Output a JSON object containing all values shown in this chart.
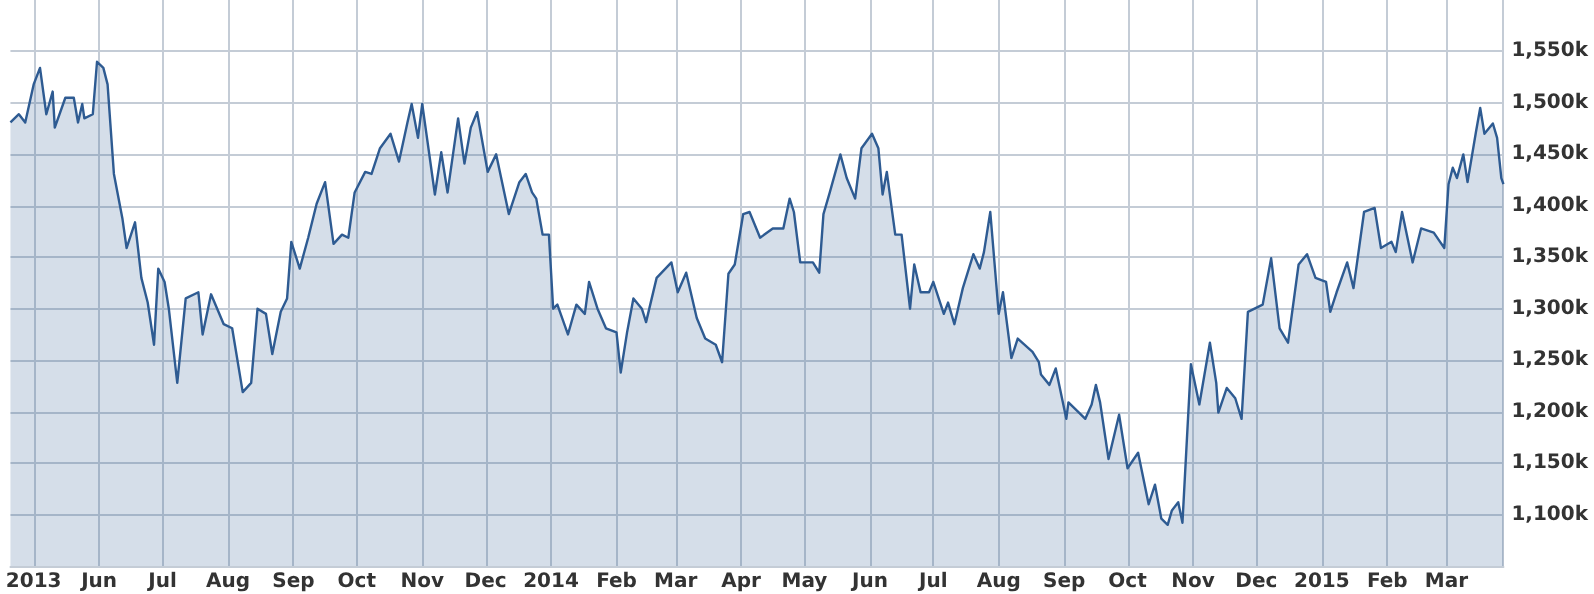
{
  "chart_data": {
    "type": "area",
    "color": "#2e5b92",
    "grid": true,
    "marker": "none",
    "xlim": [
      "2013-04-20",
      "2015-03-28"
    ],
    "xticks": [
      {
        "value": "2013-05-01",
        "label": "2013"
      },
      {
        "value": "2013-06-01",
        "label": "Jun"
      },
      {
        "value": "2013-07-01",
        "label": "Jul"
      },
      {
        "value": "2013-08-01",
        "label": "Aug"
      },
      {
        "value": "2013-09-01",
        "label": "Sep"
      },
      {
        "value": "2013-10-01",
        "label": "Oct"
      },
      {
        "value": "2013-11-01",
        "label": "Nov"
      },
      {
        "value": "2013-12-01",
        "label": "Dec"
      },
      {
        "value": "2014-01-01",
        "label": "2014"
      },
      {
        "value": "2014-02-01",
        "label": "Feb"
      },
      {
        "value": "2014-03-01",
        "label": "Mar"
      },
      {
        "value": "2014-04-01",
        "label": "Apr"
      },
      {
        "value": "2014-05-01",
        "label": "May"
      },
      {
        "value": "2014-06-01",
        "label": "Jun"
      },
      {
        "value": "2014-07-01",
        "label": "Jul"
      },
      {
        "value": "2014-08-01",
        "label": "Aug"
      },
      {
        "value": "2014-09-01",
        "label": "Sep"
      },
      {
        "value": "2014-10-01",
        "label": "Oct"
      },
      {
        "value": "2014-11-01",
        "label": "Nov"
      },
      {
        "value": "2014-12-01",
        "label": "Dec"
      },
      {
        "value": "2015-01-01",
        "label": "2015"
      },
      {
        "value": "2015-02-01",
        "label": "Feb"
      },
      {
        "value": "2015-03-01",
        "label": "Mar"
      }
    ],
    "ylim": [
      1050,
      1600
    ],
    "yticks": [
      {
        "value": 1100,
        "label": "1,100k"
      },
      {
        "value": 1150,
        "label": "1,150k"
      },
      {
        "value": 1200,
        "label": "1,200k"
      },
      {
        "value": 1250,
        "label": "1,250k"
      },
      {
        "value": 1300,
        "label": "1,300k"
      },
      {
        "value": 1350,
        "label": "1,350k"
      },
      {
        "value": 1400,
        "label": "1,400k"
      },
      {
        "value": 1450,
        "label": "1,450k"
      },
      {
        "value": 1500,
        "label": "1,500k"
      },
      {
        "value": 1550,
        "label": "1,550k"
      }
    ],
    "x": [
      "2013-04-20",
      "2013-04-24",
      "2013-04-27",
      "2013-05-01",
      "2013-05-04",
      "2013-05-07",
      "2013-05-10",
      "2013-05-11",
      "2013-05-16",
      "2013-05-20",
      "2013-05-22",
      "2013-05-24",
      "2013-05-25",
      "2013-05-29",
      "2013-05-31",
      "2013-06-03",
      "2013-06-05",
      "2013-06-08",
      "2013-06-12",
      "2013-06-14",
      "2013-06-18",
      "2013-06-21",
      "2013-06-24",
      "2013-06-27",
      "2013-06-29",
      "2013-07-02",
      "2013-07-04",
      "2013-07-08",
      "2013-07-12",
      "2013-07-18",
      "2013-07-20",
      "2013-07-24",
      "2013-07-30",
      "2013-08-03",
      "2013-08-08",
      "2013-08-12",
      "2013-08-15",
      "2013-08-19",
      "2013-08-22",
      "2013-08-26",
      "2013-08-29",
      "2013-08-31",
      "2013-09-04",
      "2013-09-08",
      "2013-09-12",
      "2013-09-16",
      "2013-09-20",
      "2013-09-24",
      "2013-09-27",
      "2013-09-30",
      "2013-10-05",
      "2013-10-08",
      "2013-10-12",
      "2013-10-17",
      "2013-10-21",
      "2013-10-25",
      "2013-10-27",
      "2013-10-30",
      "2013-11-01",
      "2013-11-07",
      "2013-11-10",
      "2013-11-13",
      "2013-11-18",
      "2013-11-21",
      "2013-11-24",
      "2013-11-27",
      "2013-12-02",
      "2013-12-06",
      "2013-12-12",
      "2013-12-17",
      "2013-12-20",
      "2013-12-23",
      "2013-12-25",
      "2013-12-28",
      "2013-12-31",
      "2014-01-02",
      "2014-01-04",
      "2014-01-09",
      "2014-01-13",
      "2014-01-17",
      "2014-01-19",
      "2014-01-23",
      "2014-01-27",
      "2014-02-01",
      "2014-02-03",
      "2014-02-06",
      "2014-02-09",
      "2014-02-13",
      "2014-02-15",
      "2014-02-20",
      "2014-02-27",
      "2014-03-02",
      "2014-03-06",
      "2014-03-11",
      "2014-03-15",
      "2014-03-20",
      "2014-03-23",
      "2014-03-26",
      "2014-03-29",
      "2014-04-02",
      "2014-04-05",
      "2014-04-10",
      "2014-04-16",
      "2014-04-21",
      "2014-04-24",
      "2014-04-26",
      "2014-04-29",
      "2014-05-05",
      "2014-05-08",
      "2014-05-10",
      "2014-05-13",
      "2014-05-18",
      "2014-05-21",
      "2014-05-25",
      "2014-05-28",
      "2014-06-02",
      "2014-06-05",
      "2014-06-07",
      "2014-06-09",
      "2014-06-13",
      "2014-06-16",
      "2014-06-20",
      "2014-06-22",
      "2014-06-25",
      "2014-06-29",
      "2014-07-01",
      "2014-07-06",
      "2014-07-08",
      "2014-07-11",
      "2014-07-15",
      "2014-07-20",
      "2014-07-23",
      "2014-07-25",
      "2014-07-28",
      "2014-08-01",
      "2014-08-03",
      "2014-08-07",
      "2014-08-10",
      "2014-08-17",
      "2014-08-20",
      "2014-08-21",
      "2014-08-25",
      "2014-08-28",
      "2014-09-02",
      "2014-09-03",
      "2014-09-08",
      "2014-09-11",
      "2014-09-14",
      "2014-09-16",
      "2014-09-18",
      "2014-09-22",
      "2014-09-27",
      "2014-10-01",
      "2014-10-06",
      "2014-10-11",
      "2014-10-14",
      "2014-10-17",
      "2014-10-20",
      "2014-10-22",
      "2014-10-25",
      "2014-10-27",
      "2014-10-31",
      "2014-11-04",
      "2014-11-09",
      "2014-11-12",
      "2014-11-13",
      "2014-11-17",
      "2014-11-21",
      "2014-11-24",
      "2014-11-27",
      "2014-12-04",
      "2014-12-08",
      "2014-12-12",
      "2014-12-16",
      "2014-12-21",
      "2014-12-25",
      "2014-12-29",
      "2015-01-03",
      "2015-01-05",
      "2015-01-08",
      "2015-01-13",
      "2015-01-16",
      "2015-01-21",
      "2015-01-26",
      "2015-01-29",
      "2015-02-03",
      "2015-02-05",
      "2015-02-08",
      "2015-02-13",
      "2015-02-17",
      "2015-02-23",
      "2015-02-26",
      "2015-02-28",
      "2015-03-02",
      "2015-03-04",
      "2015-03-06",
      "2015-03-09",
      "2015-03-11",
      "2015-03-15",
      "2015-03-17",
      "2015-03-19",
      "2015-03-23",
      "2015-03-25",
      "2015-03-27",
      "2015-03-28"
    ],
    "values": [
      1481,
      1489,
      1481,
      1518,
      1534,
      1489,
      1511,
      1476,
      1505,
      1505,
      1481,
      1499,
      1485,
      1489,
      1540,
      1534,
      1518,
      1431,
      1388,
      1359,
      1384,
      1330,
      1306,
      1265,
      1339,
      1326,
      1300,
      1228,
      1310,
      1316,
      1275,
      1314,
      1285,
      1281,
      1219,
      1228,
      1300,
      1295,
      1256,
      1297,
      1310,
      1365,
      1339,
      1369,
      1402,
      1423,
      1363,
      1372,
      1369,
      1413,
      1433,
      1431,
      1456,
      1470,
      1443,
      1481,
      1499,
      1466,
      1499,
      1411,
      1452,
      1413,
      1485,
      1441,
      1476,
      1491,
      1433,
      1450,
      1392,
      1423,
      1431,
      1413,
      1407,
      1372,
      1372,
      1300,
      1304,
      1275,
      1304,
      1295,
      1326,
      1300,
      1281,
      1277,
      1238,
      1277,
      1310,
      1300,
      1287,
      1330,
      1345,
      1316,
      1335,
      1291,
      1271,
      1265,
      1248,
      1334,
      1343,
      1392,
      1394,
      1369,
      1378,
      1378,
      1407,
      1394,
      1345,
      1345,
      1335,
      1392,
      1413,
      1450,
      1427,
      1407,
      1456,
      1470,
      1456,
      1411,
      1433,
      1372,
      1372,
      1300,
      1343,
      1316,
      1316,
      1326,
      1295,
      1306,
      1285,
      1320,
      1353,
      1339,
      1355,
      1394,
      1295,
      1316,
      1252,
      1271,
      1258,
      1248,
      1236,
      1226,
      1242,
      1193,
      1209,
      1199,
      1193,
      1207,
      1226,
      1209,
      1154,
      1197,
      1145,
      1160,
      1110,
      1129,
      1096,
      1090,
      1104,
      1112,
      1092,
      1246,
      1207,
      1267,
      1228,
      1199,
      1223,
      1213,
      1193,
      1297,
      1304,
      1349,
      1281,
      1267,
      1343,
      1353,
      1330,
      1326,
      1297,
      1316,
      1345,
      1320,
      1394,
      1398,
      1359,
      1365,
      1355,
      1394,
      1345,
      1378,
      1374,
      1365,
      1359,
      1421,
      1437,
      1427,
      1450,
      1423,
      1472,
      1495,
      1470,
      1480,
      1466,
      1427,
      1421
    ]
  }
}
